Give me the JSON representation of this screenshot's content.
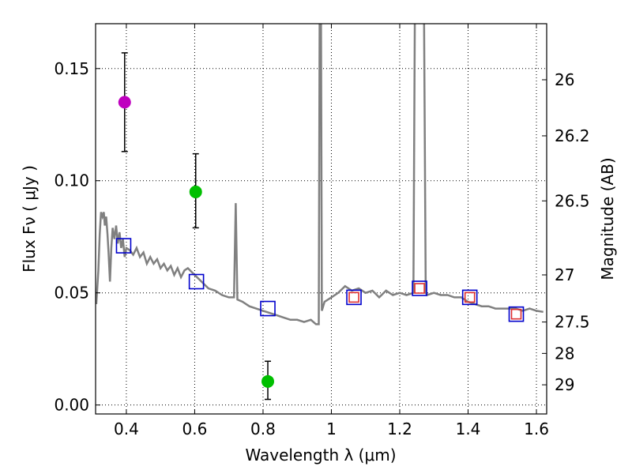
{
  "chart_data": {
    "type": "scatter",
    "xlabel": "Wavelength  λ (μm)",
    "ylabel": "Flux  Fν  ( μJy )",
    "ylabel_right": "Magnitude (AB)",
    "xlim": [
      0.31,
      1.63
    ],
    "ylim": [
      -0.004,
      0.17
    ],
    "grid": true,
    "x_ticks": [
      0.4,
      0.6,
      0.8,
      1.0,
      1.2,
      1.4,
      1.6
    ],
    "x_tick_labels": [
      "0.4",
      "0.6",
      "0.8",
      "1",
      "1.2",
      "1.4",
      "1.6"
    ],
    "y_ticks": [
      0.0,
      0.05,
      0.1,
      0.15
    ],
    "y_tick_labels": [
      "0.00",
      "0.05",
      "0.10",
      "0.15"
    ],
    "right_ticks": [
      {
        "label": "26",
        "flux": 0.145
      },
      {
        "label": "26.2",
        "flux": 0.12
      },
      {
        "label": "26.5",
        "flux": 0.091
      },
      {
        "label": "27",
        "flux": 0.058
      },
      {
        "label": "27.5",
        "flux": 0.037
      },
      {
        "label": "28",
        "flux": 0.023
      },
      {
        "label": "29",
        "flux": 0.009
      }
    ],
    "series": [
      {
        "name": "measurements-magenta",
        "kind": "points",
        "color": "#bf00bf",
        "points": [
          {
            "x": 0.395,
            "y": 0.135,
            "ylo": 0.113,
            "yhi": 0.157
          }
        ]
      },
      {
        "name": "measurements-green",
        "kind": "points",
        "color": "#00bf00",
        "points": [
          {
            "x": 0.603,
            "y": 0.095,
            "ylo": 0.079,
            "yhi": 0.112
          },
          {
            "x": 0.814,
            "y": 0.0105,
            "ylo": 0.0025,
            "yhi": 0.0195
          }
        ]
      },
      {
        "name": "model-photometry-blue",
        "kind": "open-squares",
        "color": "#0000cc",
        "points": [
          {
            "x": 0.392,
            "y": 0.071
          },
          {
            "x": 0.605,
            "y": 0.055
          },
          {
            "x": 0.814,
            "y": 0.043
          },
          {
            "x": 1.066,
            "y": 0.048
          },
          {
            "x": 1.258,
            "y": 0.052
          },
          {
            "x": 1.405,
            "y": 0.048
          },
          {
            "x": 1.541,
            "y": 0.0405
          }
        ]
      },
      {
        "name": "photometry-red",
        "kind": "open-squares",
        "color": "#e03030",
        "points": [
          {
            "x": 1.066,
            "y": 0.048
          },
          {
            "x": 1.258,
            "y": 0.052
          },
          {
            "x": 1.405,
            "y": 0.048
          },
          {
            "x": 1.541,
            "y": 0.0405
          }
        ]
      }
    ],
    "model_spectrum": {
      "name": "SED template",
      "color": "#808080",
      "x": [
        0.312,
        0.318,
        0.322,
        0.326,
        0.33,
        0.334,
        0.337,
        0.341,
        0.345,
        0.348,
        0.352,
        0.356,
        0.36,
        0.365,
        0.37,
        0.375,
        0.38,
        0.385,
        0.39,
        0.395,
        0.4,
        0.41,
        0.42,
        0.43,
        0.44,
        0.45,
        0.46,
        0.47,
        0.48,
        0.49,
        0.5,
        0.51,
        0.52,
        0.53,
        0.54,
        0.55,
        0.56,
        0.57,
        0.58,
        0.6,
        0.62,
        0.64,
        0.66,
        0.68,
        0.7,
        0.715,
        0.72,
        0.725,
        0.74,
        0.76,
        0.78,
        0.8,
        0.82,
        0.84,
        0.86,
        0.88,
        0.9,
        0.92,
        0.94,
        0.955,
        0.963,
        0.966,
        0.969,
        0.972,
        0.98,
        1.0,
        1.02,
        1.04,
        1.06,
        1.08,
        1.1,
        1.12,
        1.14,
        1.16,
        1.18,
        1.2,
        1.22,
        1.24,
        1.245,
        1.252,
        1.257,
        1.263,
        1.27,
        1.276,
        1.28,
        1.3,
        1.32,
        1.34,
        1.36,
        1.38,
        1.4,
        1.42,
        1.44,
        1.46,
        1.48,
        1.5,
        1.52,
        1.54,
        1.56,
        1.58,
        1.6,
        1.62
      ],
      "y": [
        0.045,
        0.06,
        0.076,
        0.086,
        0.084,
        0.086,
        0.08,
        0.084,
        0.076,
        0.068,
        0.055,
        0.07,
        0.079,
        0.074,
        0.08,
        0.072,
        0.077,
        0.07,
        0.074,
        0.066,
        0.07,
        0.069,
        0.067,
        0.07,
        0.066,
        0.068,
        0.063,
        0.066,
        0.063,
        0.065,
        0.061,
        0.063,
        0.06,
        0.062,
        0.058,
        0.061,
        0.057,
        0.06,
        0.061,
        0.058,
        0.055,
        0.052,
        0.051,
        0.049,
        0.048,
        0.048,
        0.09,
        0.047,
        0.046,
        0.044,
        0.043,
        0.042,
        0.041,
        0.04,
        0.039,
        0.038,
        0.038,
        0.037,
        0.038,
        0.036,
        0.036,
        0.2,
        0.2,
        0.042,
        0.046,
        0.048,
        0.05,
        0.053,
        0.051,
        0.052,
        0.05,
        0.051,
        0.048,
        0.051,
        0.049,
        0.05,
        0.049,
        0.05,
        0.2,
        0.2,
        0.2,
        0.2,
        0.2,
        0.05,
        0.049,
        0.05,
        0.049,
        0.049,
        0.048,
        0.048,
        0.046,
        0.045,
        0.044,
        0.044,
        0.043,
        0.043,
        0.043,
        0.043,
        0.042,
        0.043,
        0.042,
        0.0415
      ]
    }
  }
}
